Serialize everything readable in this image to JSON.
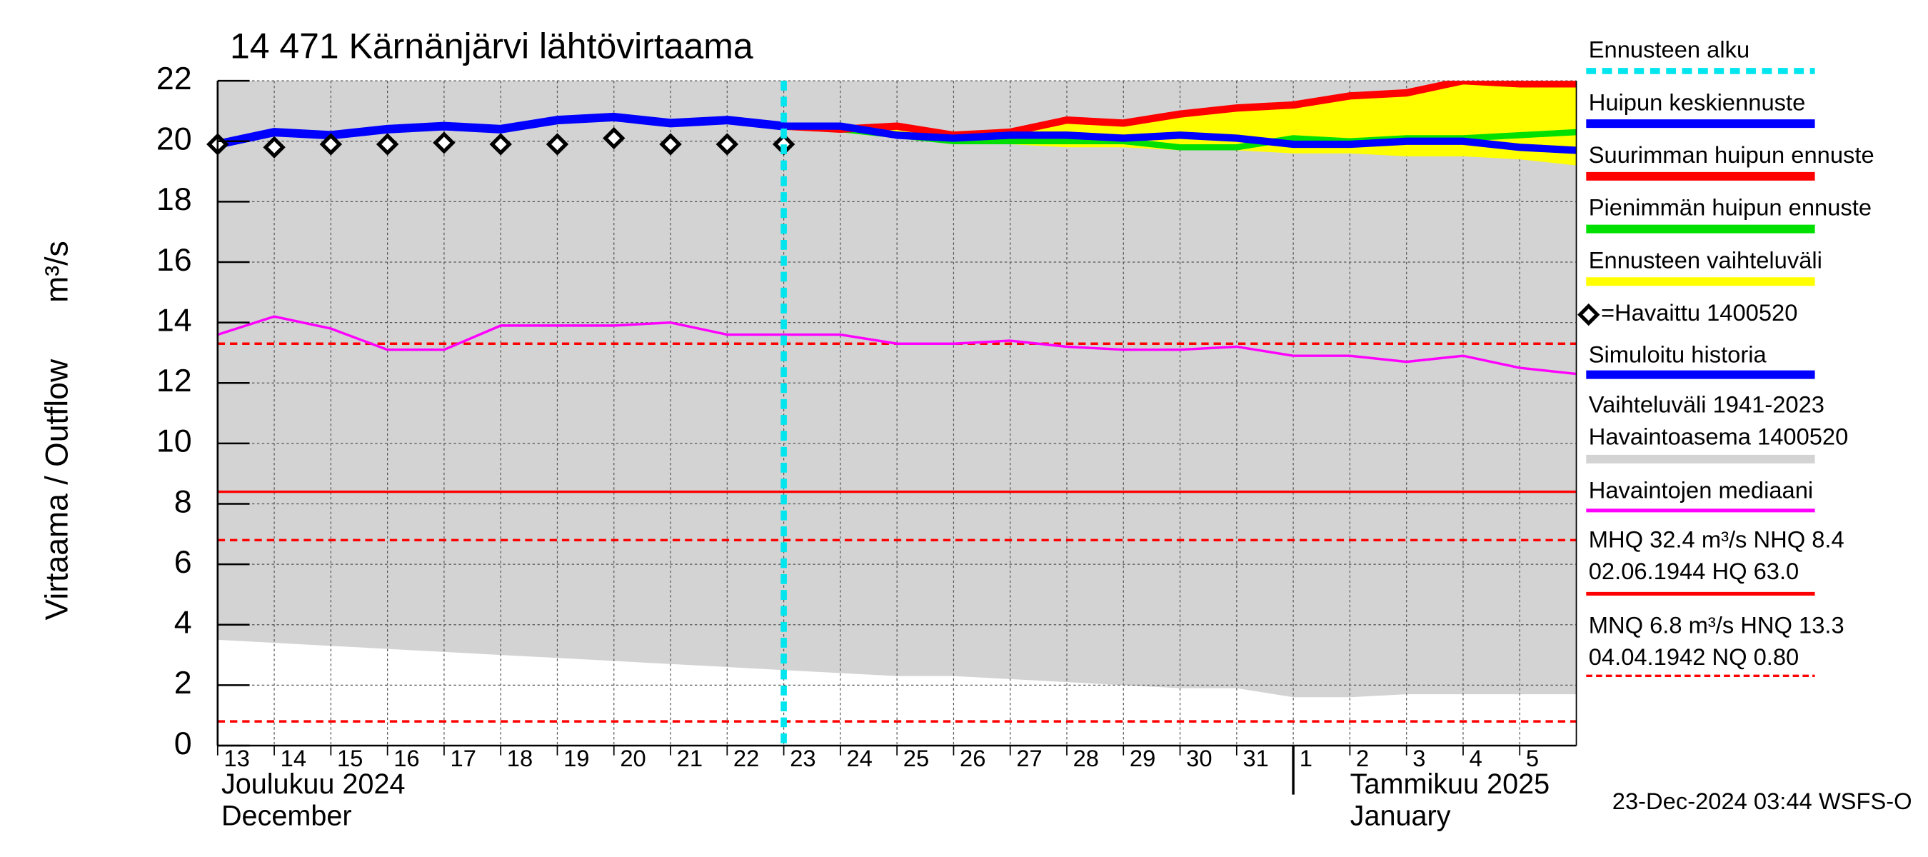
{
  "chart_data": {
    "type": "line",
    "title": "14 471 Kärnänjärvi lähtövirtaama",
    "y_label": "Virtaama / Outflow",
    "y_unit": "m³/s",
    "month_labels": [
      [
        "Joulukuu  2024",
        "December"
      ],
      [
        "Tammikuu  2025",
        "January"
      ]
    ],
    "timestamp": "23-Dec-2024 03:44 WSFS-O",
    "x": [
      0,
      1,
      2,
      3,
      4,
      5,
      6,
      7,
      8,
      9,
      10,
      11,
      12,
      13,
      14,
      15,
      16,
      17,
      18,
      19,
      20,
      21,
      22,
      23,
      24
    ],
    "xlim": [
      0,
      24
    ],
    "xticks": [
      {
        "value": 0,
        "label": "13"
      },
      {
        "value": 1,
        "label": "14"
      },
      {
        "value": 2,
        "label": "15"
      },
      {
        "value": 3,
        "label": "16"
      },
      {
        "value": 4,
        "label": "17"
      },
      {
        "value": 5,
        "label": "18"
      },
      {
        "value": 6,
        "label": "19"
      },
      {
        "value": 7,
        "label": "20"
      },
      {
        "value": 8,
        "label": "21"
      },
      {
        "value": 9,
        "label": "22"
      },
      {
        "value": 10,
        "label": "23"
      },
      {
        "value": 11,
        "label": "24"
      },
      {
        "value": 12,
        "label": "25"
      },
      {
        "value": 13,
        "label": "26"
      },
      {
        "value": 14,
        "label": "27"
      },
      {
        "value": 15,
        "label": "28"
      },
      {
        "value": 16,
        "label": "29"
      },
      {
        "value": 17,
        "label": "30"
      },
      {
        "value": 18,
        "label": "31"
      },
      {
        "value": 19,
        "label": "1"
      },
      {
        "value": 20,
        "label": "2"
      },
      {
        "value": 21,
        "label": "3"
      },
      {
        "value": 22,
        "label": "4"
      },
      {
        "value": 23,
        "label": "5"
      }
    ],
    "month_break": 19,
    "ylim": [
      0,
      22
    ],
    "yticks": [
      0,
      2,
      4,
      6,
      8,
      10,
      12,
      14,
      16,
      18,
      20,
      22
    ],
    "grid": true,
    "forecast_start": 10,
    "range": {
      "color": "#d3d3d3",
      "low": [
        3.5,
        3.4,
        3.3,
        3.2,
        3.1,
        3.0,
        2.9,
        2.8,
        2.7,
        2.6,
        2.5,
        2.4,
        2.3,
        2.3,
        2.2,
        2.1,
        2.0,
        1.9,
        1.9,
        1.6,
        1.6,
        1.7,
        1.7,
        1.7,
        1.7
      ],
      "high": [
        22,
        22,
        22,
        22,
        22,
        22,
        22,
        22,
        22,
        22,
        22,
        22,
        22,
        22,
        22,
        22,
        22,
        22,
        22,
        22,
        22,
        22,
        22,
        22,
        22
      ]
    },
    "band": {
      "color": "#ffff00",
      "low": [
        null,
        null,
        null,
        null,
        null,
        null,
        null,
        null,
        null,
        null,
        20.4,
        20.3,
        20.1,
        20.0,
        19.9,
        19.8,
        19.8,
        19.7,
        19.7,
        19.6,
        19.6,
        19.5,
        19.5,
        19.4,
        19.2
      ],
      "high": [
        null,
        null,
        null,
        null,
        null,
        null,
        null,
        null,
        null,
        null,
        20.5,
        20.4,
        20.5,
        20.2,
        20.3,
        20.7,
        20.6,
        20.9,
        21.1,
        21.2,
        21.5,
        21.6,
        22.0,
        21.9,
        21.9
      ]
    },
    "reference_lines": [
      {
        "value": 13.3,
        "color": "#ff0000",
        "dashed": true
      },
      {
        "value": 8.4,
        "color": "#ff0000",
        "dashed": false
      },
      {
        "value": 6.8,
        "color": "#ff0000",
        "dashed": true
      },
      {
        "value": 0.8,
        "color": "#ff0000",
        "dashed": true
      }
    ],
    "series": [
      {
        "color": "#ff00ff",
        "width": 2,
        "values": [
          13.6,
          14.2,
          13.8,
          13.1,
          13.1,
          13.9,
          13.9,
          13.9,
          14.0,
          13.6,
          13.6,
          13.6,
          13.3,
          13.3,
          13.4,
          13.2,
          13.1,
          13.1,
          13.2,
          12.9,
          12.9,
          12.7,
          12.9,
          12.5,
          12.3
        ]
      },
      {
        "color": "#00e000",
        "width": 5,
        "values": [
          null,
          null,
          null,
          null,
          null,
          null,
          null,
          null,
          null,
          null,
          20.5,
          20.4,
          20.2,
          20.0,
          20.0,
          20.0,
          20.0,
          19.8,
          19.8,
          20.1,
          20.0,
          20.1,
          20.1,
          20.2,
          20.3
        ]
      },
      {
        "color": "#ff0000",
        "width": 6,
        "values": [
          null,
          null,
          null,
          null,
          null,
          null,
          null,
          null,
          null,
          null,
          20.5,
          20.4,
          20.5,
          20.2,
          20.3,
          20.7,
          20.6,
          20.9,
          21.1,
          21.2,
          21.5,
          21.6,
          22.0,
          21.9,
          21.9
        ]
      },
      {
        "color": "#0000ff",
        "width": 7,
        "values": [
          19.9,
          20.3,
          20.2,
          20.4,
          20.5,
          20.4,
          20.7,
          20.8,
          20.6,
          20.7,
          20.5,
          null,
          null,
          null,
          null,
          null,
          null,
          null,
          null,
          null,
          null,
          null,
          null,
          null,
          null
        ]
      },
      {
        "color": "#0000ff",
        "width": 6,
        "values": [
          null,
          null,
          null,
          null,
          null,
          null,
          null,
          null,
          null,
          null,
          20.5,
          20.5,
          20.2,
          20.1,
          20.2,
          20.2,
          20.1,
          20.2,
          20.1,
          19.9,
          19.9,
          20.0,
          20.0,
          19.8,
          19.7
        ]
      }
    ],
    "observed": {
      "color": "#000000",
      "values": [
        19.9,
        19.8,
        19.9,
        19.9,
        19.95,
        19.9,
        19.9,
        20.1,
        19.9,
        19.9,
        19.9,
        null,
        null,
        null,
        null,
        null,
        null,
        null,
        null,
        null,
        null,
        null,
        null,
        null,
        null
      ]
    },
    "legend": [
      {
        "lines": [
          "Ennusteen alku"
        ],
        "color": "#00e5ee",
        "style": "dashed"
      },
      {
        "lines": [
          "Huipun keskiennuste"
        ],
        "color": "#0000ff",
        "style": "line"
      },
      {
        "lines": [
          "Suurimman huipun ennuste"
        ],
        "color": "#ff0000",
        "style": "line"
      },
      {
        "lines": [
          "Pienimmän huipun ennuste"
        ],
        "color": "#00e000",
        "style": "line"
      },
      {
        "lines": [
          "Ennusteen vaihteluväli"
        ],
        "color": "#ffff00",
        "style": "line"
      },
      {
        "lines": [
          "=Havaittu 1400520"
        ],
        "color": "#000000",
        "style": "diamond"
      },
      {
        "lines": [
          "Simuloitu historia"
        ],
        "color": "#0000ff",
        "style": "line"
      },
      {
        "lines": [
          "Vaihteluväli 1941-2023",
          " Havaintoasema 1400520"
        ],
        "color": "#d3d3d3",
        "style": "line"
      },
      {
        "lines": [
          "Havaintojen mediaani"
        ],
        "color": "#ff00ff",
        "style": "thin"
      },
      {
        "lines": [
          "MHQ 32.4 m³/s NHQ  8.4",
          "02.06.1944 HQ 63.0"
        ],
        "color": "#ff0000",
        "style": "thin"
      },
      {
        "lines": [
          "MNQ  6.8 m³/s HNQ 13.3",
          "04.04.1942 NQ 0.80"
        ],
        "color": "#ff0000",
        "style": "dashed-thin"
      }
    ]
  }
}
